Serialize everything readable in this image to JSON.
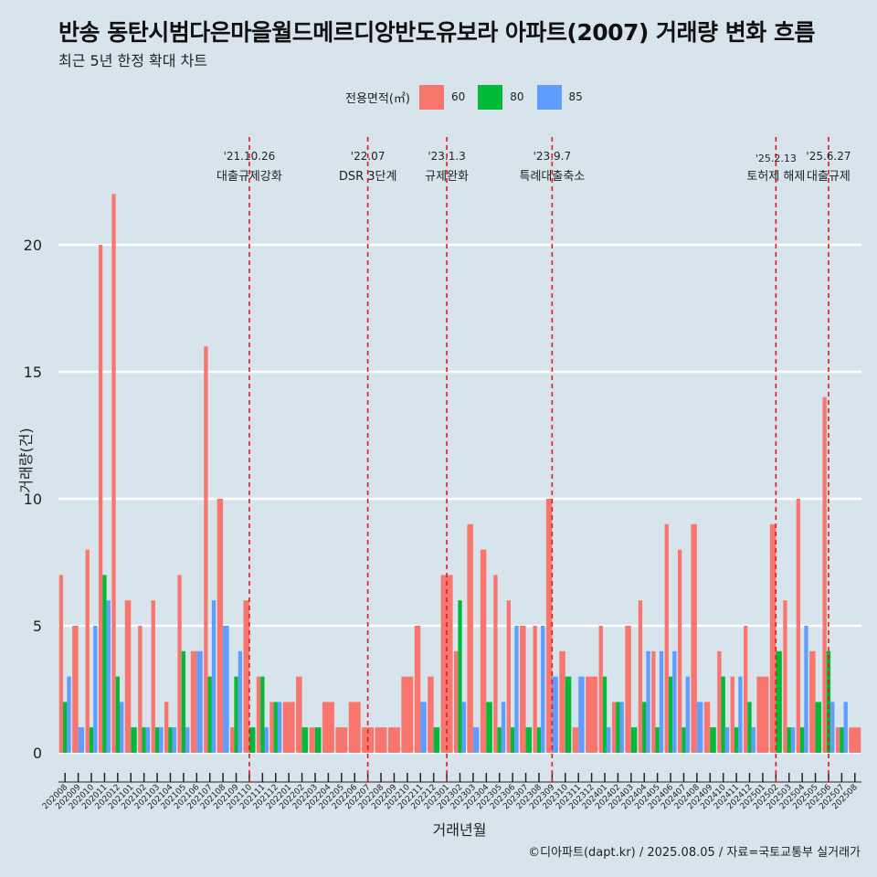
{
  "title": "반송 동탄시범다은마을월드메르디앙반도유보라 아파트(2007) 거래량 변화 흐름",
  "subtitle": "최근 5년 한정 확대 차트",
  "legend": {
    "title": "전용면적(㎡)",
    "items": [
      {
        "label": "60",
        "color": "#f8766d"
      },
      {
        "label": "80",
        "color": "#00ba38"
      },
      {
        "label": "85",
        "color": "#619cff"
      }
    ]
  },
  "source": "©디아파트(dapt.kr) / 2025.08.05 / 자료=국토교통부 실거래가",
  "chart_data": {
    "type": "bar",
    "xlabel": "거래년월",
    "ylabel": "거래량(건)",
    "ylim": [
      0,
      22
    ],
    "yticks": [
      0,
      5,
      10,
      15,
      20
    ],
    "grid": true,
    "legend_position": "top",
    "categories": [
      "202008",
      "202009",
      "202010",
      "202011",
      "202012",
      "202101",
      "202102",
      "202103",
      "202104",
      "202105",
      "202106",
      "202107",
      "202108",
      "202109",
      "202110",
      "202111",
      "202112",
      "202201",
      "202202",
      "202203",
      "202204",
      "202205",
      "202206",
      "202207",
      "202208",
      "202209",
      "202210",
      "202211",
      "202212",
      "202301",
      "202302",
      "202303",
      "202304",
      "202305",
      "202306",
      "202307",
      "202308",
      "202309",
      "202310",
      "202311",
      "202312",
      "202401",
      "202402",
      "202403",
      "202404",
      "202405",
      "202406",
      "202407",
      "202408",
      "202409",
      "202410",
      "202411",
      "202412",
      "202501",
      "202502",
      "202503",
      "202504",
      "202505",
      "202506",
      "202507",
      "202508"
    ],
    "series": [
      {
        "name": "60",
        "color": "#f8766d",
        "values": [
          7,
          5,
          8,
          20,
          22,
          6,
          5,
          6,
          2,
          7,
          4,
          16,
          10,
          1,
          6,
          3,
          2,
          2,
          3,
          1,
          2,
          1,
          2,
          1,
          1,
          1,
          3,
          5,
          3,
          7,
          4,
          9,
          8,
          7,
          6,
          5,
          5,
          10,
          4,
          1,
          3,
          5,
          2,
          5,
          6,
          4,
          9,
          8,
          9,
          2,
          4,
          3,
          5,
          3,
          9,
          6,
          10,
          4,
          14,
          1,
          1
        ]
      },
      {
        "name": "80",
        "color": "#00ba38",
        "values": [
          2,
          0,
          1,
          7,
          3,
          1,
          1,
          1,
          1,
          4,
          0,
          3,
          0,
          3,
          1,
          3,
          2,
          0,
          1,
          1,
          0,
          0,
          0,
          0,
          0,
          0,
          0,
          0,
          1,
          0,
          6,
          0,
          2,
          1,
          1,
          1,
          1,
          0,
          3,
          0,
          0,
          3,
          2,
          1,
          2,
          1,
          3,
          1,
          0,
          1,
          3,
          1,
          2,
          0,
          4,
          1,
          1,
          2,
          4,
          1,
          0
        ]
      },
      {
        "name": "85",
        "color": "#619cff",
        "values": [
          3,
          1,
          5,
          6,
          2,
          0,
          1,
          1,
          1,
          1,
          4,
          6,
          5,
          4,
          0,
          1,
          2,
          0,
          0,
          0,
          0,
          0,
          0,
          0,
          0,
          0,
          0,
          2,
          0,
          0,
          2,
          1,
          0,
          2,
          5,
          0,
          5,
          3,
          0,
          3,
          0,
          1,
          2,
          0,
          4,
          4,
          4,
          3,
          2,
          0,
          1,
          3,
          1,
          0,
          0,
          1,
          5,
          0,
          2,
          2,
          0
        ]
      }
    ],
    "annotations": [
      {
        "date": "'21.10.26",
        "text": "대출규제강화",
        "at": "202110"
      },
      {
        "date": "'22.07",
        "text": "DSR 3단계",
        "at": "202207"
      },
      {
        "date": "'23.1.3",
        "text": "규제완화",
        "at": "202301"
      },
      {
        "date": "'23.9.7",
        "text": "특례대출축소",
        "at": "202309"
      },
      {
        "date": "'25.2.13",
        "text": "토허제 해제",
        "at": "202502"
      },
      {
        "date": "'25.6.27",
        "text": "대출규제",
        "at": "202506"
      }
    ]
  }
}
